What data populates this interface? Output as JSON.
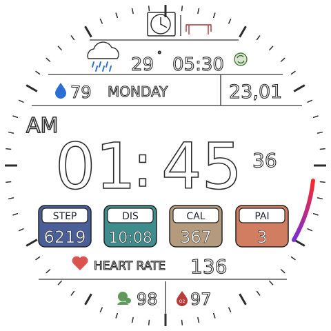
{
  "weather": {
    "temperature": "29",
    "degree_symbol": "°",
    "icon": "rain-cloud-icon"
  },
  "sunrise_time": "05:30",
  "humidity": "79",
  "day_of_week": "MONDAY",
  "date": "23,01",
  "time": {
    "ampm": "AM",
    "hours": "01",
    "separator": ":",
    "minutes": "45",
    "seconds": "36"
  },
  "stats": [
    {
      "label": "STEP",
      "value": "6219",
      "color": "#4a5f98"
    },
    {
      "label": "DIS",
      "value": "10:08",
      "color": "#3f8c8c"
    },
    {
      "label": "CAL",
      "value": "367",
      "color": "#b59b7e"
    },
    {
      "label": "PAI",
      "value": "3",
      "color": "#d17d62"
    }
  ],
  "heart_rate": {
    "label": "HEART RATE",
    "value": "136",
    "color": "#d9534f"
  },
  "stress_value": "98",
  "spo2": {
    "icon_text": "O2",
    "value": "97"
  },
  "arc_gradient": [
    "#ff2a2a",
    "#7b2cd6"
  ]
}
